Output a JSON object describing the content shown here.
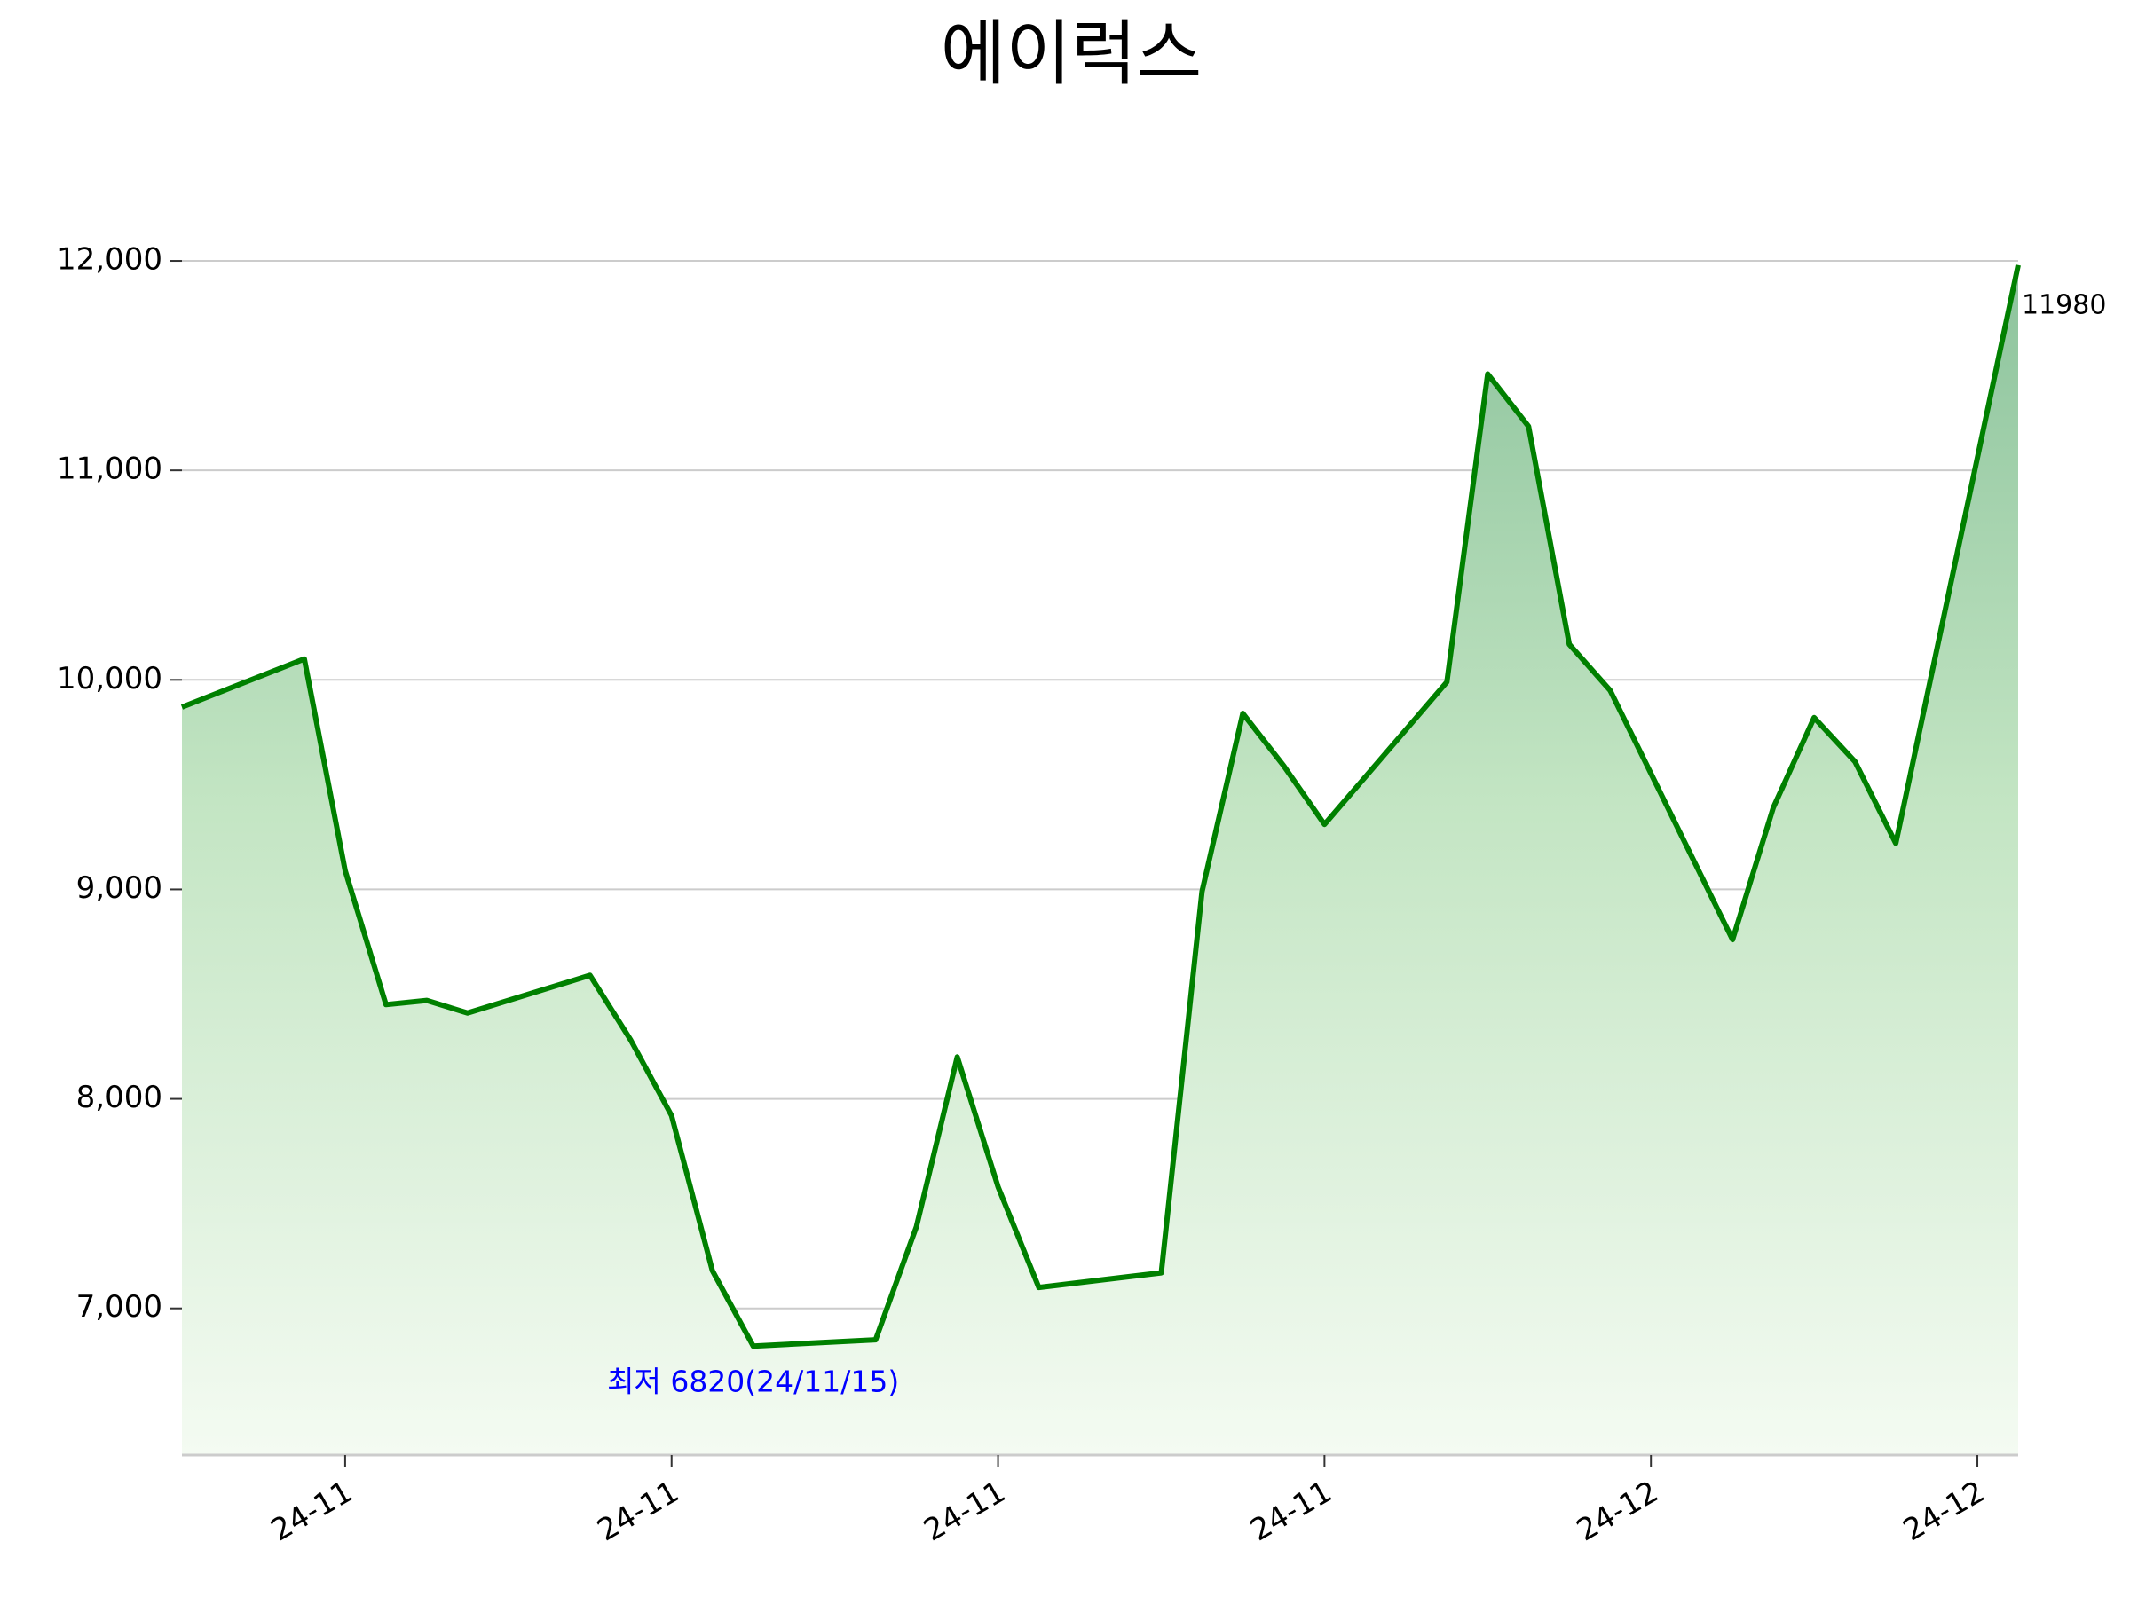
{
  "chart_data": {
    "type": "line",
    "title": "에이럭스",
    "x": [
      "2024-11-01",
      "2024-11-04",
      "2024-11-05",
      "2024-11-06",
      "2024-11-07",
      "2024-11-08",
      "2024-11-11",
      "2024-11-12",
      "2024-11-13",
      "2024-11-14",
      "2024-11-15",
      "2024-11-18",
      "2024-11-19",
      "2024-11-20",
      "2024-11-21",
      "2024-11-22",
      "2024-11-25",
      "2024-11-26",
      "2024-11-27",
      "2024-11-28",
      "2024-11-29",
      "2024-12-02",
      "2024-12-03",
      "2024-12-04",
      "2024-12-05",
      "2024-12-06",
      "2024-12-09",
      "2024-12-10",
      "2024-12-11",
      "2024-12-12",
      "2024-12-13",
      "2024-12-16"
    ],
    "series": [
      {
        "color": "#008000",
        "values": [
          9870,
          10100,
          9090,
          8450,
          8470,
          8410,
          8590,
          8280,
          7920,
          7180,
          6820,
          6850,
          7390,
          8200,
          7580,
          7100,
          7170,
          8990,
          9840,
          9590,
          9310,
          9990,
          11460,
          11210,
          10170,
          9950,
          8760,
          9390,
          9820,
          9610,
          9220,
          11980
        ]
      }
    ],
    "xlim": [
      "2024-11-01",
      "2024-12-16"
    ],
    "xticks": [
      {
        "value": "2024-11-05",
        "label": "24-11"
      },
      {
        "value": "2024-11-13",
        "label": "24-11"
      },
      {
        "value": "2024-11-21",
        "label": "24-11"
      },
      {
        "value": "2024-11-29",
        "label": "24-11"
      },
      {
        "value": "2024-12-07",
        "label": "24-12"
      },
      {
        "value": "2024-12-15",
        "label": "24-12"
      }
    ],
    "ylim": [
      6300,
      12250
    ],
    "yticks": [
      {
        "value": 7000,
        "label": "7,000"
      },
      {
        "value": 8000,
        "label": "8,000"
      },
      {
        "value": 9000,
        "label": "9,000"
      },
      {
        "value": 10000,
        "label": "10,000"
      },
      {
        "value": 11000,
        "label": "11,000"
      },
      {
        "value": 12000,
        "label": "12,000"
      }
    ],
    "grid": true,
    "annotations": [
      {
        "text": "최저 6820(24/11/15)",
        "color": "#0000ff",
        "point": 10
      },
      {
        "text": "11980",
        "color": "#000000",
        "point": 31
      }
    ]
  }
}
